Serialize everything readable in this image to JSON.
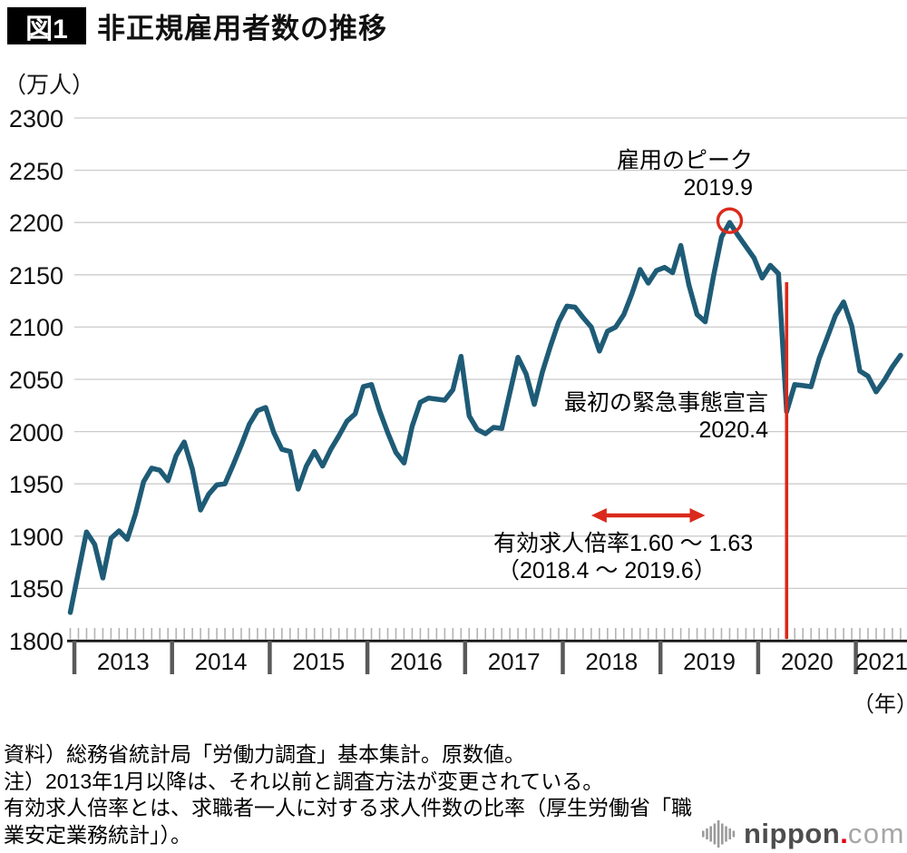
{
  "title": {
    "tag": "図1",
    "text": "非正規雇用者数の推移"
  },
  "y_axis": {
    "unit": "（万人）",
    "ticks": [
      2300,
      2250,
      2200,
      2150,
      2100,
      2050,
      2000,
      1950,
      1900,
      1850,
      1800
    ]
  },
  "x_axis": {
    "years": [
      "2013",
      "2014",
      "2015",
      "2016",
      "2017",
      "2018",
      "2019",
      "2020",
      "2021"
    ],
    "unit": "（年）"
  },
  "annotations": {
    "peak": {
      "line1": "雇用のピーク",
      "line2": "2019.9"
    },
    "emergency": {
      "line1": "最初の緊急事態宣言",
      "line2": "2020.4"
    },
    "job_ratio": {
      "line1": "有効求人倍率1.60 〜 1.63",
      "line2": "（2018.4 〜 2019.6）"
    }
  },
  "footer": {
    "lines": [
      "資料）総務省統計局「労働力調査」基本集計。原数値。",
      "注）2013年1月以降は、それ以前と調査方法が変更されている。",
      "有効求人倍率とは、求職者一人に対する求人件数の比率（厚生労働省「職",
      "業安定業務統計」）。"
    ]
  },
  "logo": {
    "word": "nippon",
    "dot": ".",
    "tld": "com"
  },
  "colors": {
    "line": "#1e5b76",
    "red": "#da291c",
    "grid": "#cbcbcb",
    "minor_tick": "#b3b3b3",
    "year_tick": "#595959",
    "axis": "#1a1a1a",
    "logo_gray": "#9b9b9b",
    "logo_dot_red": "#e60012"
  },
  "chart_data": {
    "type": "line",
    "title": "非正規雇用者数の推移",
    "ylabel": "万人",
    "xlabel": "年",
    "ylim": [
      1800,
      2300
    ],
    "grid": true,
    "frequency": "monthly",
    "start": "2012-12",
    "end": "2021-06",
    "series": [
      {
        "name": "非正規雇用者数",
        "values": [
          1827,
          1866,
          1904,
          1892,
          1860,
          1898,
          1905,
          1897,
          1921,
          1952,
          1965,
          1963,
          1953,
          1977,
          1990,
          1964,
          1925,
          1940,
          1949,
          1950,
          1968,
          1987,
          2007,
          2020,
          2023,
          1999,
          1983,
          1981,
          1945,
          1967,
          1981,
          1967,
          1983,
          1996,
          2010,
          2017,
          2043,
          2045,
          2020,
          1999,
          1980,
          1970,
          2005,
          2028,
          2032,
          2031,
          2030,
          2040,
          2072,
          2015,
          2002,
          1998,
          2004,
          2003,
          2037,
          2071,
          2055,
          2026,
          2057,
          2082,
          2105,
          2120,
          2119,
          2109,
          2100,
          2077,
          2096,
          2100,
          2112,
          2132,
          2155,
          2142,
          2154,
          2157,
          2152,
          2178,
          2140,
          2112,
          2105,
          2148,
          2186,
          2200,
          2188,
          2177,
          2166,
          2147,
          2159,
          2151,
          2019,
          2045,
          2044,
          2043,
          2070,
          2090,
          2111,
          2124,
          2101,
          2058,
          2053,
          2038,
          2049,
          2062,
          2073
        ]
      }
    ],
    "key_points": {
      "peak": {
        "date": "2019.9",
        "value": 2200,
        "index": 81
      },
      "emergency_line": {
        "date": "2020.4",
        "value": 2019,
        "index": 88
      },
      "arrow_span": {
        "from_date": "2018.4",
        "to_date": "2019.6",
        "from_index": 64,
        "to_index": 78
      }
    }
  }
}
